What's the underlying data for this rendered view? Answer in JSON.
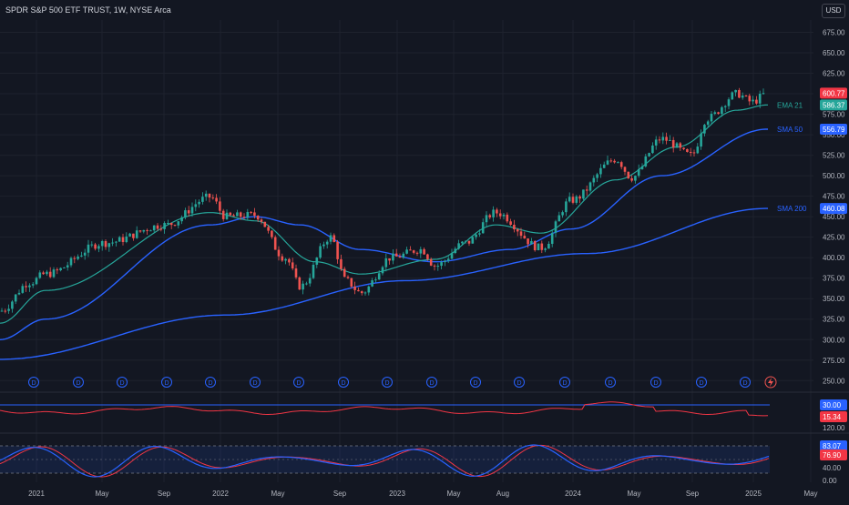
{
  "header": {
    "title": "SPDR S&P 500 ETF TRUST, 1W, NYSE Arca",
    "currency": "USD"
  },
  "colors": {
    "background": "#131722",
    "grid": "#1e222d",
    "up": "#26a69a",
    "down": "#ef5350",
    "ema": "#26a69a",
    "sma50": "#2962ff",
    "sma200": "#2962ff",
    "rsi": "#f23645",
    "stoch_k": "#2962ff",
    "stoch_d": "#f23645",
    "text": "#b2b5be"
  },
  "price_axis": {
    "ticks": [
      "675.00",
      "650.00",
      "625.00",
      "600.00",
      "575.00",
      "550.00",
      "525.00",
      "500.00",
      "475.00",
      "450.00",
      "425.00",
      "400.00",
      "375.00",
      "350.00",
      "325.00",
      "300.00",
      "275.00",
      "250.00"
    ]
  },
  "price_labels": [
    {
      "value": 600.77,
      "text": "600.77",
      "color": "#f23645"
    },
    {
      "value": 586.37,
      "text": "586.37",
      "color": "#26a69a"
    },
    {
      "value": 556.79,
      "text": "556.79",
      "color": "#2962ff"
    },
    {
      "value": 460.08,
      "text": "460.08",
      "color": "#2962ff"
    }
  ],
  "indicator_labels": [
    {
      "text": "EMA 21",
      "value": 586.37,
      "color": "#26a69a"
    },
    {
      "text": "SMA 50",
      "value": 556.79,
      "color": "#2962ff"
    },
    {
      "text": "SMA 200",
      "value": 460.08,
      "color": "#2962ff"
    }
  ],
  "rsi_pane": {
    "level_value": 30.0,
    "level_text": "30.00",
    "value_text": "15.34",
    "scale_text": "120.00"
  },
  "stoch_pane": {
    "ticks": [
      "83.07",
      "76.90",
      "40.00",
      "0.00"
    ],
    "k_text": "83.07",
    "d_text": "76.90"
  },
  "time_axis": [
    "2021",
    "May",
    "Sep",
    "2022",
    "May",
    "Sep",
    "2023",
    "May",
    "Aug",
    "2024",
    "May",
    "Sep",
    "2025",
    "May"
  ],
  "dividend_marker": "D",
  "chart_data": {
    "type": "candlestick",
    "title": "SPDR S&P 500 ETF TRUST, 1W, NYSE Arca",
    "timeframe": "1W",
    "ylim": [
      237,
      690
    ],
    "price_anchors": [
      {
        "t": "2020-10",
        "close": 335
      },
      {
        "t": "2020-12",
        "close": 370
      },
      {
        "t": "2021-01",
        "close": 380
      },
      {
        "t": "2021-05",
        "close": 418
      },
      {
        "t": "2021-09",
        "close": 440
      },
      {
        "t": "2021-12",
        "close": 474
      },
      {
        "t": "2022-01",
        "close": 450
      },
      {
        "t": "2022-03",
        "close": 452
      },
      {
        "t": "2022-05",
        "close": 400
      },
      {
        "t": "2022-06",
        "close": 365
      },
      {
        "t": "2022-08",
        "close": 425
      },
      {
        "t": "2022-09",
        "close": 372
      },
      {
        "t": "2022-10",
        "close": 357
      },
      {
        "t": "2022-12",
        "close": 400
      },
      {
        "t": "2023-02",
        "close": 410
      },
      {
        "t": "2023-03",
        "close": 390
      },
      {
        "t": "2023-05",
        "close": 418
      },
      {
        "t": "2023-07",
        "close": 455
      },
      {
        "t": "2023-10",
        "close": 412
      },
      {
        "t": "2023-12",
        "close": 470
      },
      {
        "t": "2024-03",
        "close": 520
      },
      {
        "t": "2024-04",
        "close": 498
      },
      {
        "t": "2024-06",
        "close": 545
      },
      {
        "t": "2024-08",
        "close": 525
      },
      {
        "t": "2024-09",
        "close": 570
      },
      {
        "t": "2024-11",
        "close": 600
      },
      {
        "t": "2024-12",
        "close": 590
      },
      {
        "t": "2025-01",
        "close": 600.77
      }
    ],
    "ema21_anchors": [
      {
        "t": "2020-10",
        "value": 320
      },
      {
        "t": "2021-01",
        "value": 360
      },
      {
        "t": "2021-12",
        "value": 455
      },
      {
        "t": "2022-03",
        "value": 445
      },
      {
        "t": "2022-07",
        "value": 395
      },
      {
        "t": "2022-10",
        "value": 380
      },
      {
        "t": "2023-03",
        "value": 398
      },
      {
        "t": "2023-07",
        "value": 440
      },
      {
        "t": "2023-10",
        "value": 430
      },
      {
        "t": "2024-03",
        "value": 495
      },
      {
        "t": "2024-07",
        "value": 535
      },
      {
        "t": "2024-11",
        "value": 580
      },
      {
        "t": "2025-01",
        "value": 586.37
      }
    ],
    "sma50_anchors": [
      {
        "t": "2020-10",
        "value": 300
      },
      {
        "t": "2021-01",
        "value": 325
      },
      {
        "t": "2021-12",
        "value": 440
      },
      {
        "t": "2022-03",
        "value": 450
      },
      {
        "t": "2022-06",
        "value": 440
      },
      {
        "t": "2022-10",
        "value": 410
      },
      {
        "t": "2023-03",
        "value": 395
      },
      {
        "t": "2023-08",
        "value": 410
      },
      {
        "t": "2023-12",
        "value": 435
      },
      {
        "t": "2024-06",
        "value": 500
      },
      {
        "t": "2025-01",
        "value": 556.79
      }
    ],
    "sma200_anchors": [
      {
        "t": "2020-10",
        "value": 276
      },
      {
        "t": "2022-01",
        "value": 330
      },
      {
        "t": "2023-01",
        "value": 372
      },
      {
        "t": "2024-01",
        "value": 405
      },
      {
        "t": "2025-01",
        "value": 460.08
      }
    ],
    "rsi": {
      "current": 15.34,
      "level": 30.0
    },
    "stochastic": {
      "k": 83.07,
      "d": 76.9
    }
  }
}
